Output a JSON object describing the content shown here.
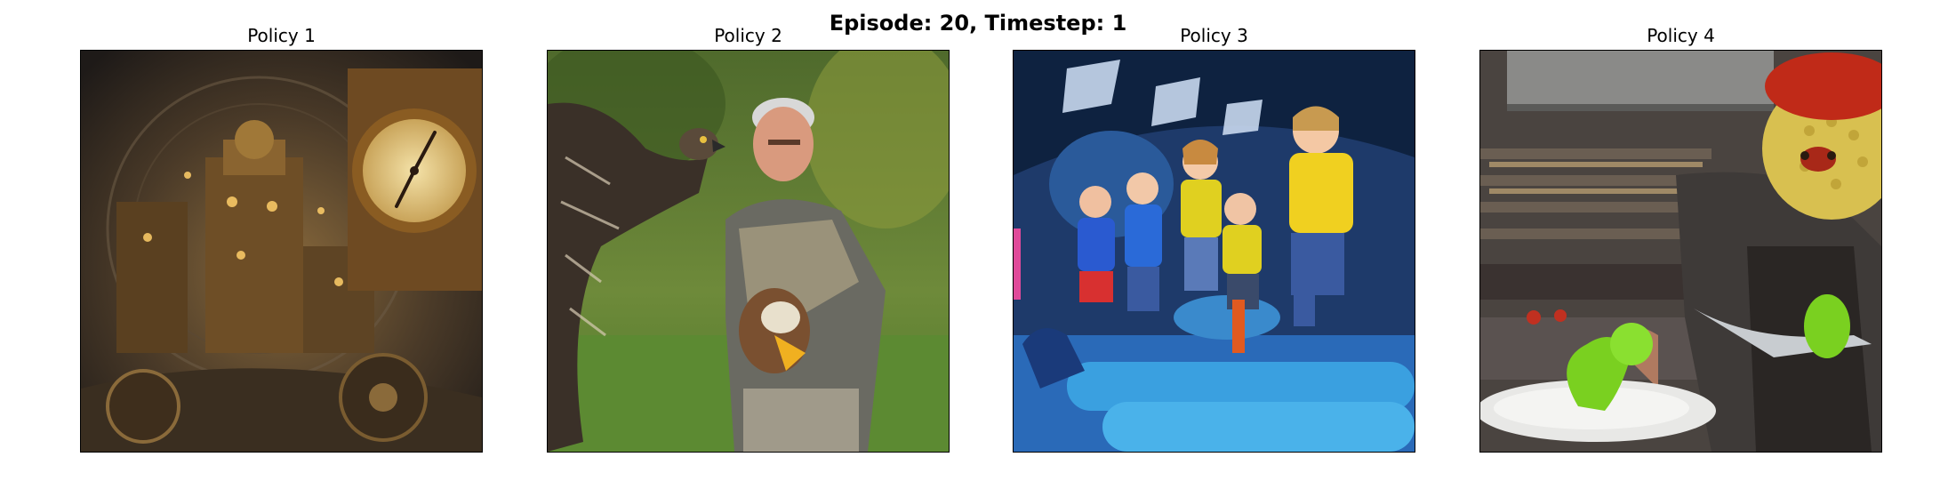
{
  "figure": {
    "suptitle": "Episode: 20, Timestep: 1"
  },
  "panels": [
    {
      "title": "Policy 1",
      "icon": "steampunk-clockwork-city-image"
    },
    {
      "title": "Policy 2",
      "icon": "man-with-hawks-image"
    },
    {
      "title": "Policy 3",
      "icon": "children-jumping-playground-image"
    },
    {
      "title": "Policy 4",
      "icon": "monster-chef-kitchen-image"
    }
  ]
}
